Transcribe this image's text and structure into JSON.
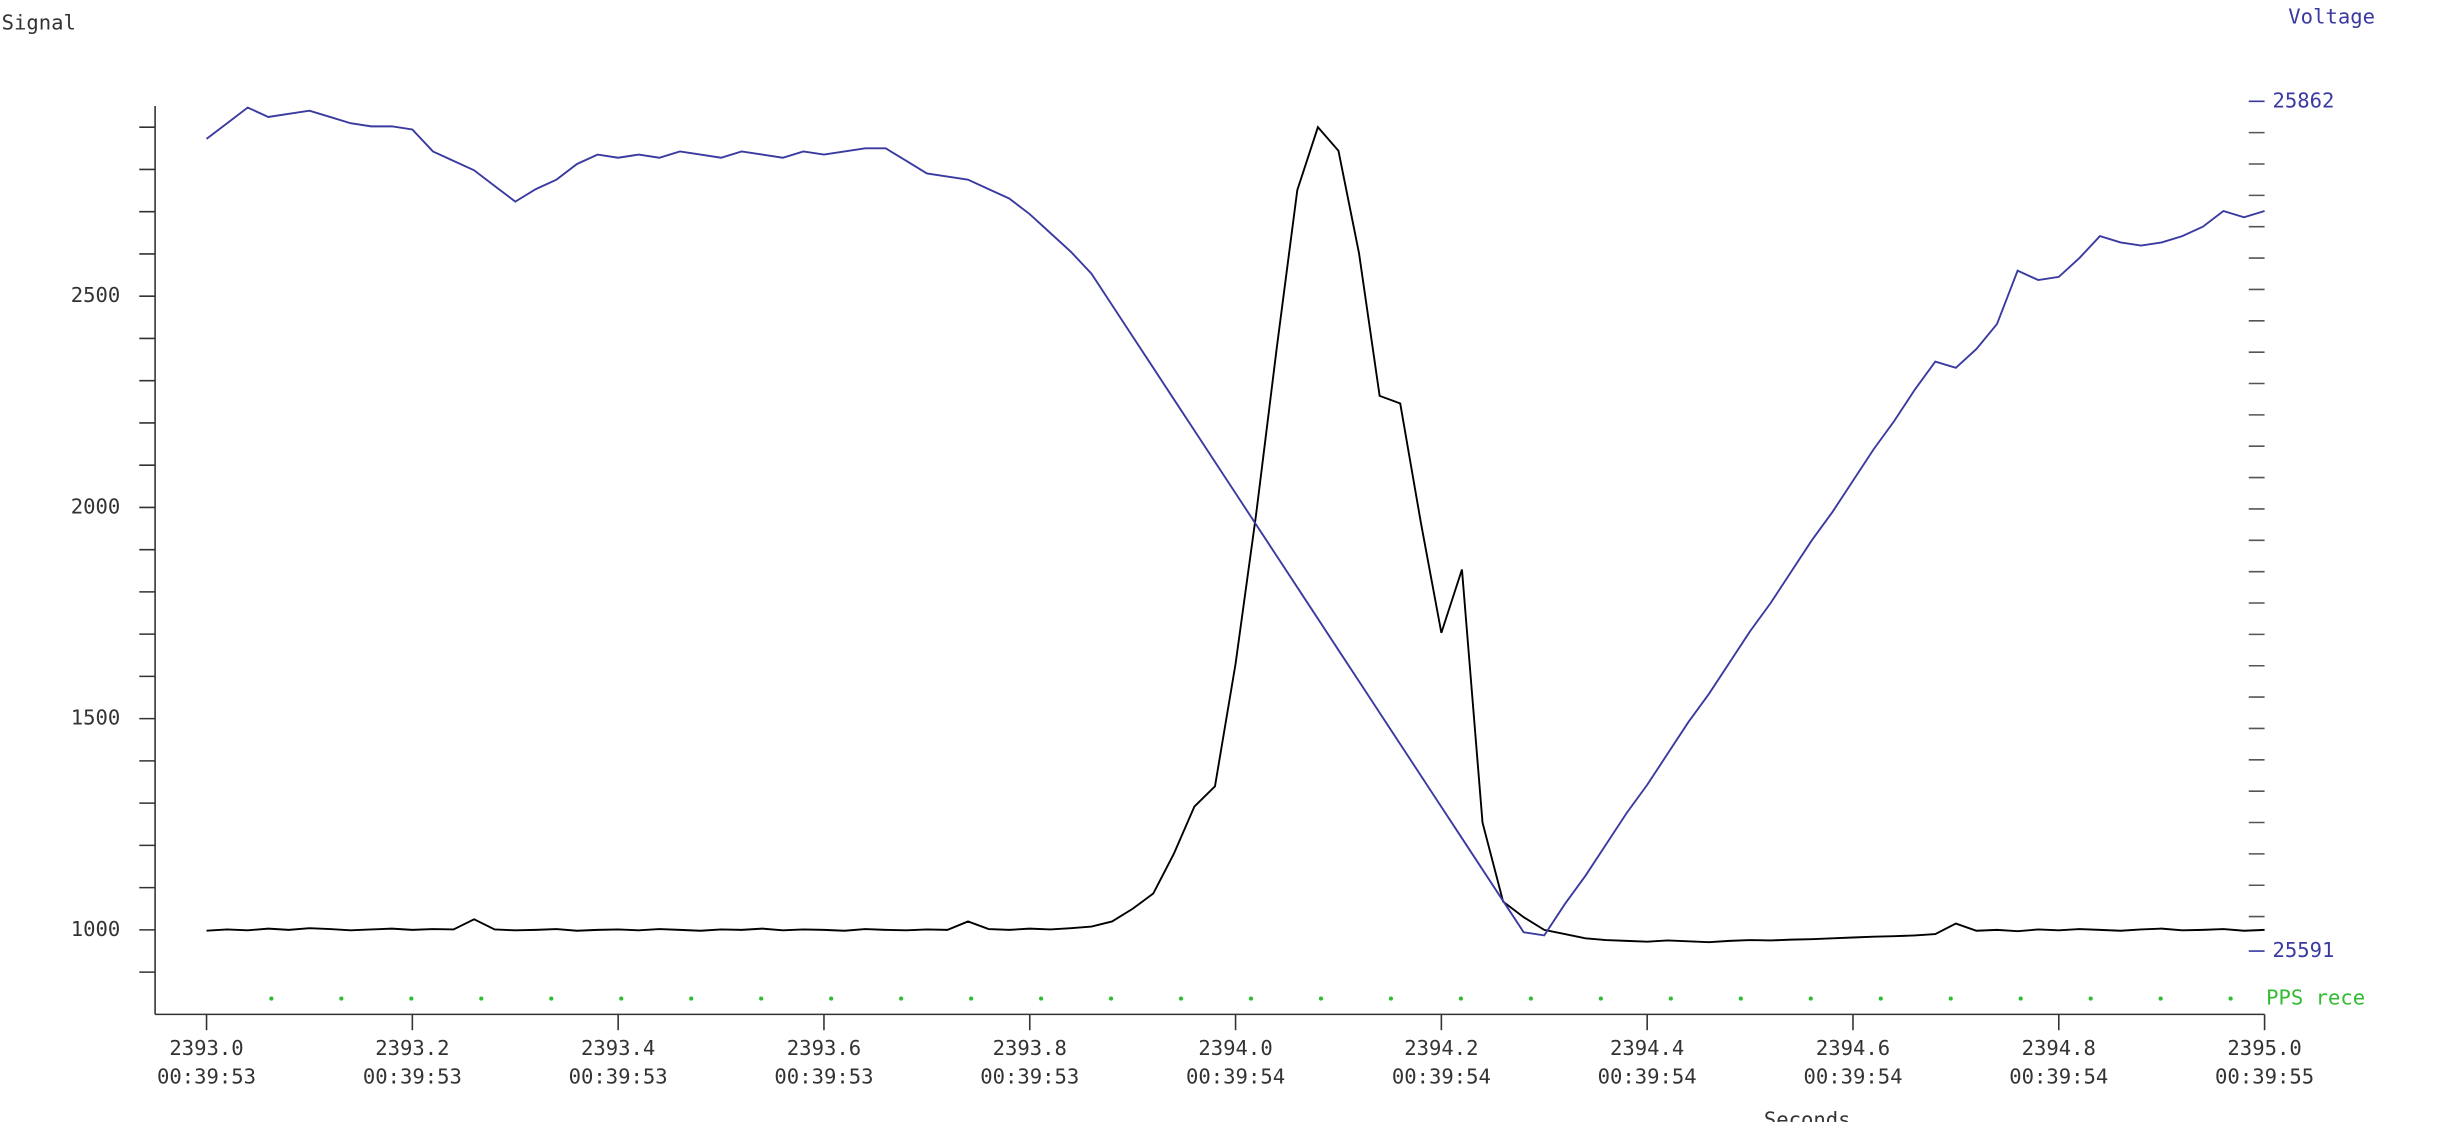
{
  "chart_data": {
    "type": "line",
    "ylabel": "Signal",
    "y2label": "Voltage",
    "xlabel": "Seconds",
    "xlim": [
      2392.95,
      2395.0
    ],
    "xticks": [
      {
        "value": 2393.0,
        "label": "2393.0"
      },
      {
        "value": 2393.2,
        "label": "2393.2"
      },
      {
        "value": 2393.4,
        "label": "2393.4"
      },
      {
        "value": 2393.6,
        "label": "2393.6"
      },
      {
        "value": 2393.8,
        "label": "2393.8"
      },
      {
        "value": 2394.0,
        "label": "2394.0"
      },
      {
        "value": 2394.2,
        "label": "2394.2"
      },
      {
        "value": 2394.4,
        "label": "2394.4"
      },
      {
        "value": 2394.6,
        "label": "2394.6"
      },
      {
        "value": 2394.8,
        "label": "2394.8"
      },
      {
        "value": 2395.0,
        "label": "2395.0"
      }
    ],
    "xtick_times": [
      "00:39:53",
      "00:39:53",
      "00:39:53",
      "00:39:53",
      "00:39:53",
      "00:39:54",
      "00:39:54",
      "00:39:54",
      "00:39:54",
      "00:39:54",
      "00:39:55"
    ],
    "ylim": [
      800,
      2950
    ],
    "yticks": [
      1000,
      1500,
      2000,
      2500
    ],
    "yminorticks": [
      900,
      1100,
      1200,
      1300,
      1400,
      1600,
      1700,
      1800,
      1900,
      2100,
      2200,
      2300,
      2400,
      2600,
      2700,
      2800,
      2900
    ],
    "y2lim": [
      25591,
      25862
    ],
    "y2ticks": [
      25591,
      25862
    ],
    "y2minorticks": [
      25602,
      25612,
      25622,
      25632,
      25642,
      25652,
      25662,
      25672,
      25682,
      25692,
      25702,
      25712,
      25722,
      25732,
      25742,
      25752,
      25762,
      25772,
      25782,
      25792,
      25802,
      25812,
      25822,
      25832,
      25842,
      25852
    ],
    "x": [
      2393.0,
      2393.02,
      2393.04,
      2393.06,
      2393.08,
      2393.1,
      2393.12,
      2393.14,
      2393.16,
      2393.18,
      2393.2,
      2393.22,
      2393.24,
      2393.26,
      2393.28,
      2393.3,
      2393.32,
      2393.34,
      2393.36,
      2393.38,
      2393.4,
      2393.42,
      2393.44,
      2393.46,
      2393.48,
      2393.5,
      2393.52,
      2393.54,
      2393.56,
      2393.58,
      2393.6,
      2393.62,
      2393.64,
      2393.66,
      2393.68,
      2393.7,
      2393.72,
      2393.74,
      2393.76,
      2393.78,
      2393.8,
      2393.82,
      2393.84,
      2393.86,
      2393.88,
      2393.9,
      2393.92,
      2393.94,
      2393.96,
      2393.98,
      2394.0,
      2394.02,
      2394.04,
      2394.06,
      2394.08,
      2394.1,
      2394.12,
      2394.14,
      2394.16,
      2394.18,
      2394.2,
      2394.22,
      2394.24,
      2394.26,
      2394.28,
      2394.3,
      2394.32,
      2394.34,
      2394.36,
      2394.38,
      2394.4,
      2394.42,
      2394.44,
      2394.46,
      2394.48,
      2394.5,
      2394.52,
      2394.54,
      2394.56,
      2394.58,
      2394.6,
      2394.62,
      2394.64,
      2394.66,
      2394.68,
      2394.7,
      2394.72,
      2394.74,
      2394.76,
      2394.78,
      2394.8,
      2394.82,
      2394.84,
      2394.86,
      2394.88,
      2394.9,
      2394.92,
      2394.94,
      2394.96,
      2394.98,
      2395.0
    ],
    "series": [
      {
        "color": "#000000",
        "values": [
          998,
          1001,
          999,
          1003,
          1000,
          1004,
          1002,
          999,
          1001,
          1003,
          1000,
          1002,
          1001,
          1025,
          1001,
          999,
          1000,
          1002,
          998,
          1000,
          1001,
          999,
          1002,
          1000,
          998,
          1001,
          1000,
          1003,
          999,
          1001,
          1000,
          998,
          1002,
          1000,
          999,
          1001,
          1000,
          1020,
          1002,
          1000,
          1003,
          1001,
          1004,
          1008,
          1020,
          1050,
          1086,
          1180,
          1292,
          1340,
          1630,
          1984,
          2377,
          2751,
          2900,
          2844,
          2601,
          2264,
          2246,
          1965,
          1703,
          1853,
          1254,
          1067,
          1030,
          1000,
          990,
          980,
          976,
          974,
          972,
          975,
          973,
          971,
          974,
          976,
          975,
          977,
          978,
          980,
          982,
          984,
          985,
          987,
          990,
          1015,
          998,
          1000,
          997,
          1001,
          999,
          1002,
          1000,
          998,
          1001,
          1003,
          999,
          1000,
          1002,
          998,
          1000
        ]
      },
      {
        "color": "#3a3aa0",
        "axis": "y2",
        "values": [
          25850,
          25855,
          25860,
          25857,
          25858,
          25859,
          25857,
          25855,
          25854,
          25854,
          25853,
          25846,
          25843,
          25840,
          25835,
          25830,
          25834,
          25837,
          25842,
          25845,
          25844,
          25845,
          25844,
          25846,
          25845,
          25844,
          25846,
          25845,
          25844,
          25846,
          25845,
          25846,
          25847,
          25847,
          25843,
          25839,
          25838,
          25837,
          25834,
          25831,
          25826,
          25820,
          25814,
          25807,
          25797,
          25787,
          25777,
          25767,
          25757,
          25747,
          25737,
          25727,
          25717,
          25707,
          25697,
          25687,
          25677,
          25667,
          25657,
          25647,
          25637,
          25627,
          25617,
          25607,
          25597,
          25596,
          25606,
          25615,
          25625,
          25635,
          25644,
          25654,
          25664,
          25673,
          25683,
          25693,
          25702,
          25712,
          25722,
          25731,
          25741,
          25751,
          25760,
          25770,
          25779,
          25777,
          25783,
          25791,
          25808,
          25805,
          25806,
          25812,
          25819,
          25817,
          25816,
          25817,
          25819,
          25822,
          25827,
          25825,
          25827
        ]
      }
    ],
    "pps": {
      "label": "PPS rece",
      "color": "#33bb33",
      "x": [
        2393.063,
        2393.131,
        2393.199,
        2393.267,
        2393.335,
        2393.403,
        2393.471,
        2393.539,
        2393.607,
        2393.675,
        2393.743,
        2393.811,
        2393.879,
        2393.947,
        2394.015,
        2394.083,
        2394.151,
        2394.219,
        2394.287,
        2394.355,
        2394.423,
        2394.491,
        2394.559,
        2394.627,
        2394.695,
        2394.763,
        2394.831,
        2394.899,
        2394.967
      ]
    }
  }
}
